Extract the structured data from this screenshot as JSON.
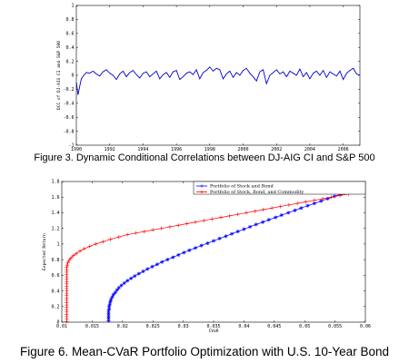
{
  "figure3": {
    "caption": "Figure 3. Dynamic Conditional Correlations between DJ-AIG CI and S&P 500",
    "chart_data": {
      "type": "line",
      "title": "",
      "xlabel": "",
      "ylabel": "DCC of DJ-AIG CI and S&P 500",
      "xlim": [
        1990,
        2007
      ],
      "ylim": [
        -1,
        1
      ],
      "xticks": [
        1990,
        1992,
        1994,
        1996,
        1998,
        2000,
        2002,
        2004,
        2006
      ],
      "yticks": [
        1,
        0.8,
        0.6,
        0.4,
        0.2,
        0,
        -0.2,
        -0.4,
        -0.6,
        -0.8,
        -1
      ],
      "ytick_labels": [
        "1",
        "0.8",
        "0.6",
        "0.4",
        "0.2",
        "0",
        "-0.2",
        "-0.4",
        "-0.6",
        "-0.8",
        "-1"
      ],
      "grid": false,
      "series": [
        {
          "color": "#0000cc",
          "x": [
            1990.0,
            1990.1,
            1990.2,
            1990.3,
            1990.45,
            1990.6,
            1990.8,
            1991.0,
            1991.2,
            1991.4,
            1991.6,
            1991.8,
            1992.0,
            1992.2,
            1992.4,
            1992.6,
            1992.8,
            1993.0,
            1993.2,
            1993.4,
            1993.6,
            1993.8,
            1994.0,
            1994.2,
            1994.4,
            1994.6,
            1994.8,
            1995.0,
            1995.2,
            1995.4,
            1995.6,
            1995.8,
            1996.0,
            1996.2,
            1996.4,
            1996.6,
            1996.8,
            1997.0,
            1997.2,
            1997.4,
            1997.6,
            1997.8,
            1998.0,
            1998.2,
            1998.4,
            1998.6,
            1998.8,
            1999.0,
            1999.2,
            1999.4,
            1999.6,
            1999.8,
            2000.0,
            2000.2,
            2000.4,
            2000.6,
            2000.8,
            2001.0,
            2001.2,
            2001.4,
            2001.6,
            2001.8,
            2002.0,
            2002.2,
            2002.4,
            2002.6,
            2002.8,
            2003.0,
            2003.2,
            2003.4,
            2003.6,
            2003.8,
            2004.0,
            2004.2,
            2004.4,
            2004.6,
            2004.8,
            2005.0,
            2005.2,
            2005.4,
            2005.6,
            2005.8,
            2006.0,
            2006.2,
            2006.4,
            2006.6,
            2006.8,
            2007.0
          ],
          "y": [
            -0.1,
            -0.28,
            -0.16,
            -0.05,
            0.0,
            0.04,
            0.03,
            0.06,
            0.02,
            -0.01,
            0.05,
            0.08,
            0.03,
            0.0,
            -0.06,
            0.02,
            0.06,
            -0.02,
            0.04,
            0.07,
            0.01,
            -0.04,
            0.03,
            0.05,
            -0.02,
            0.02,
            0.06,
            -0.05,
            0.01,
            0.04,
            -0.03,
            0.05,
            0.07,
            -0.06,
            -0.02,
            0.03,
            0.05,
            0.01,
            0.08,
            -0.05,
            0.04,
            0.07,
            0.12,
            0.06,
            0.1,
            0.08,
            -0.05,
            0.02,
            0.06,
            -0.03,
            0.04,
            0.0,
            0.07,
            0.1,
            0.03,
            -0.02,
            -0.08,
            0.05,
            0.08,
            -0.12,
            0.0,
            0.04,
            0.08,
            0.02,
            0.05,
            -0.02,
            0.06,
            0.03,
            0.0,
            0.09,
            -0.02,
            0.04,
            -0.05,
            0.03,
            0.06,
            0.0,
            0.07,
            -0.03,
            0.05,
            0.02,
            -0.01,
            0.06,
            -0.06,
            0.03,
            0.07,
            0.1,
            0.02,
            0.0
          ]
        }
      ]
    }
  },
  "figure6": {
    "caption": "Figure 6. Mean-CVaR Portfolio Optimization with U.S. 10-Year Bond",
    "chart_data": {
      "type": "line",
      "title": "",
      "xlabel": "CVaR",
      "ylabel": "Expected Return",
      "xlim": [
        0.01,
        0.06
      ],
      "ylim": [
        0,
        1.8
      ],
      "xticks": [
        0.01,
        0.015,
        0.02,
        0.025,
        0.03,
        0.035,
        0.04,
        0.045,
        0.05,
        0.055,
        0.06
      ],
      "xtick_labels": [
        "0.01",
        "0.015",
        "0.02",
        "0.025",
        "0.03",
        "0.035",
        "0.04",
        "0.045",
        "0.05",
        "0.055",
        "0.06"
      ],
      "yticks": [
        0,
        0.2,
        0.4,
        0.6,
        0.8,
        1,
        1.2,
        1.4,
        1.6,
        1.8
      ],
      "ytick_labels": [
        "0",
        "0.2",
        "0.4",
        "0.6",
        "0.8",
        "1",
        "1.2",
        "1.4",
        "1.6",
        "1.8"
      ],
      "grid": false,
      "legend": "top-right",
      "series": [
        {
          "name": "Portfolio of Stock and Bond",
          "color": "#0000ff",
          "marker": "*",
          "x": [
            0.0177,
            0.0177,
            0.0177,
            0.0177,
            0.0177,
            0.0178,
            0.0178,
            0.0179,
            0.018,
            0.0181,
            0.0183,
            0.0185,
            0.0188,
            0.0191,
            0.0194,
            0.0198,
            0.0203,
            0.0208,
            0.0214,
            0.022,
            0.0227,
            0.0234,
            0.0241,
            0.0249,
            0.0257,
            0.0265,
            0.0274,
            0.0283,
            0.0292,
            0.0301,
            0.031,
            0.032,
            0.033,
            0.034,
            0.035,
            0.036,
            0.037,
            0.038,
            0.039,
            0.04,
            0.041,
            0.042,
            0.0431,
            0.0441,
            0.0452,
            0.0462,
            0.0473,
            0.0484,
            0.0494,
            0.0505,
            0.0516,
            0.0527,
            0.0538,
            0.0549,
            0.056,
            0.0571,
            0.058
          ],
          "y": [
            0.02,
            0.05,
            0.08,
            0.11,
            0.14,
            0.17,
            0.2,
            0.23,
            0.26,
            0.29,
            0.32,
            0.35,
            0.38,
            0.41,
            0.44,
            0.47,
            0.5,
            0.53,
            0.56,
            0.59,
            0.62,
            0.65,
            0.68,
            0.71,
            0.74,
            0.77,
            0.8,
            0.83,
            0.86,
            0.89,
            0.92,
            0.95,
            0.98,
            1.01,
            1.04,
            1.07,
            1.1,
            1.13,
            1.16,
            1.19,
            1.22,
            1.25,
            1.28,
            1.31,
            1.34,
            1.37,
            1.4,
            1.43,
            1.46,
            1.49,
            1.52,
            1.55,
            1.58,
            1.61,
            1.64,
            1.67,
            1.7
          ]
        },
        {
          "name": "Portfolio of Stock, Bond, and Commodity",
          "color": "#ff0000",
          "marker": "+",
          "x": [
            0.0108,
            0.0108,
            0.0108,
            0.0108,
            0.0108,
            0.0108,
            0.0108,
            0.0108,
            0.0108,
            0.0108,
            0.0108,
            0.0108,
            0.0108,
            0.0108,
            0.0108,
            0.0108,
            0.0108,
            0.0108,
            0.0108,
            0.0108,
            0.0108,
            0.0108,
            0.0108,
            0.0108,
            0.0109,
            0.011,
            0.0112,
            0.0115,
            0.0119,
            0.0124,
            0.013,
            0.0137,
            0.0146,
            0.0156,
            0.0168,
            0.018,
            0.0194,
            0.0208,
            0.0222,
            0.0236,
            0.025,
            0.0264,
            0.0278,
            0.0292,
            0.0306,
            0.032,
            0.0334,
            0.0348,
            0.0362,
            0.0376,
            0.039,
            0.0404,
            0.0418,
            0.0432,
            0.0446,
            0.046,
            0.0474,
            0.0488,
            0.0502,
            0.0516,
            0.053,
            0.0544,
            0.0558,
            0.0572,
            0.0586
          ],
          "y": [
            0.01,
            0.04,
            0.07,
            0.1,
            0.13,
            0.16,
            0.19,
            0.22,
            0.25,
            0.28,
            0.31,
            0.34,
            0.37,
            0.4,
            0.43,
            0.46,
            0.49,
            0.52,
            0.55,
            0.58,
            0.61,
            0.64,
            0.67,
            0.7,
            0.73,
            0.76,
            0.79,
            0.82,
            0.85,
            0.88,
            0.91,
            0.94,
            0.97,
            1.0,
            1.03,
            1.06,
            1.09,
            1.12,
            1.14,
            1.16,
            1.18,
            1.2,
            1.22,
            1.24,
            1.26,
            1.28,
            1.3,
            1.32,
            1.34,
            1.36,
            1.38,
            1.4,
            1.42,
            1.44,
            1.46,
            1.48,
            1.5,
            1.52,
            1.54,
            1.56,
            1.58,
            1.6,
            1.62,
            1.64,
            1.66
          ]
        }
      ]
    }
  }
}
